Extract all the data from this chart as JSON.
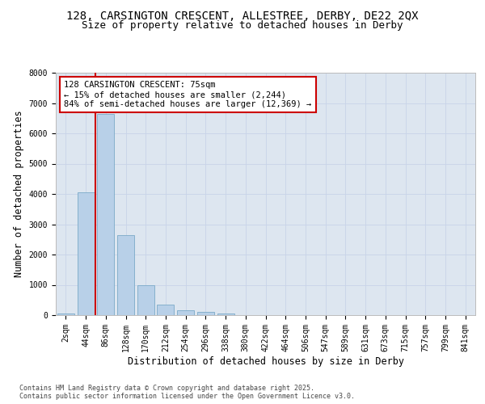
{
  "title_line1": "128, CARSINGTON CRESCENT, ALLESTREE, DERBY, DE22 2QX",
  "title_line2": "Size of property relative to detached houses in Derby",
  "xlabel": "Distribution of detached houses by size in Derby",
  "ylabel": "Number of detached properties",
  "categories": [
    "2sqm",
    "44sqm",
    "86sqm",
    "128sqm",
    "170sqm",
    "212sqm",
    "254sqm",
    "296sqm",
    "338sqm",
    "380sqm",
    "422sqm",
    "464sqm",
    "506sqm",
    "547sqm",
    "589sqm",
    "631sqm",
    "673sqm",
    "715sqm",
    "757sqm",
    "799sqm",
    "841sqm"
  ],
  "values": [
    50,
    4050,
    6650,
    2650,
    1000,
    350,
    150,
    100,
    50,
    0,
    0,
    0,
    0,
    0,
    0,
    0,
    0,
    0,
    0,
    0,
    0
  ],
  "bar_color": "#b8d0e8",
  "bar_edgecolor": "#7aaac8",
  "vline_color": "#cc0000",
  "annotation_text": "128 CARSINGTON CRESCENT: 75sqm\n← 15% of detached houses are smaller (2,244)\n84% of semi-detached houses are larger (12,369) →",
  "annotation_box_color": "white",
  "annotation_box_edgecolor": "#cc0000",
  "ylim": [
    0,
    8000
  ],
  "yticks": [
    0,
    1000,
    2000,
    3000,
    4000,
    5000,
    6000,
    7000,
    8000
  ],
  "grid_color": "#c8d4e8",
  "background_color": "#dde6f0",
  "footer_text": "Contains HM Land Registry data © Crown copyright and database right 2025.\nContains public sector information licensed under the Open Government Licence v3.0.",
  "title_fontsize": 10,
  "subtitle_fontsize": 9,
  "axis_label_fontsize": 8.5,
  "tick_fontsize": 7,
  "annotation_fontsize": 7.5,
  "footer_fontsize": 6
}
